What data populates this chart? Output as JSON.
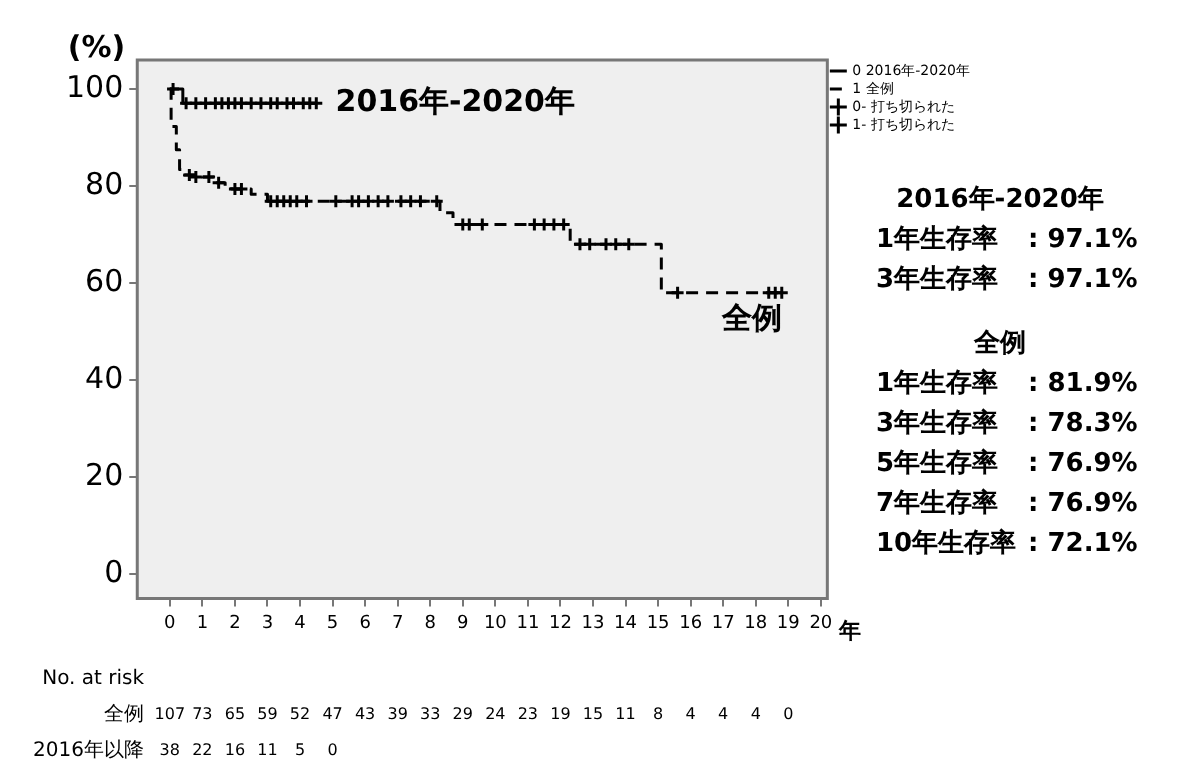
{
  "chart_data": {
    "type": "step",
    "ylabel": "(%)",
    "xlabel": "年",
    "xlim": [
      -1,
      20.2
    ],
    "xticks": [
      0,
      1,
      2,
      3,
      4,
      5,
      6,
      7,
      8,
      9,
      10,
      11,
      12,
      13,
      14,
      15,
      16,
      17,
      18,
      19,
      20
    ],
    "ylim": [
      -5,
      106
    ],
    "yticks": [
      0,
      20,
      40,
      60,
      80,
      100
    ],
    "grid": false,
    "legend": "top right",
    "series": [
      {
        "name": "0 2016年-2020年",
        "color": "#000000",
        "line_style": "solid",
        "marker": "none",
        "x": [
          0,
          0.4,
          4.5
        ],
        "values": [
          100,
          97.1,
          97.1
        ]
      },
      {
        "name": "1 全例",
        "color": "#000000",
        "line_style": "dashed",
        "marker": "none",
        "x": [
          0,
          0.04,
          0.2,
          0.3,
          0.45,
          1.0,
          1.35,
          1.7,
          1.9,
          2.5,
          3.0,
          8.3,
          8.7,
          12.3,
          15.1,
          18.8
        ],
        "values": [
          100,
          92.3,
          87.5,
          83.4,
          82.3,
          81.9,
          80.7,
          80.0,
          79.4,
          78.3,
          76.9,
          74.5,
          72.1,
          68.0,
          58.0,
          58.0
        ]
      },
      {
        "name": "0- 打ち切られた",
        "type": "scatter",
        "color": "#000000",
        "marker": "cross",
        "x": [
          0.1,
          0.5,
          0.8,
          1.1,
          1.4,
          1.6,
          1.8,
          2.0,
          2.2,
          2.5,
          2.8,
          3.1,
          3.3,
          3.6,
          3.8,
          4.1,
          4.3,
          4.5
        ],
        "values": [
          100,
          97.1,
          97.1,
          97.1,
          97.1,
          97.1,
          97.1,
          97.1,
          97.1,
          97.1,
          97.1,
          97.1,
          97.1,
          97.1,
          97.1,
          97.1,
          97.1,
          97.1
        ]
      },
      {
        "name": "1- 打ち切られた",
        "type": "scatter",
        "color": "#000000",
        "marker": "cross",
        "x": [
          0.6,
          0.8,
          1.2,
          1.5,
          2.0,
          2.2,
          3.1,
          3.3,
          3.5,
          3.7,
          3.9,
          4.2,
          5.1,
          5.6,
          5.8,
          6.1,
          6.4,
          6.7,
          7.1,
          7.4,
          7.7,
          8.2,
          9.0,
          9.2,
          9.6,
          11.2,
          11.5,
          11.8,
          12.1,
          12.6,
          12.9,
          13.4,
          13.7,
          14.1,
          15.6,
          18.4,
          18.6,
          18.8
        ],
        "values": [
          82.3,
          81.9,
          81.9,
          80.7,
          79.4,
          79.4,
          76.9,
          76.9,
          76.9,
          76.9,
          76.9,
          76.9,
          76.9,
          76.9,
          76.9,
          76.9,
          76.9,
          76.9,
          76.9,
          76.9,
          76.9,
          76.9,
          72.1,
          72.1,
          72.1,
          72.1,
          72.1,
          72.1,
          72.1,
          68.0,
          68.0,
          68.0,
          68.0,
          68.0,
          58.0,
          58.0,
          58.0,
          58.0
        ]
      }
    ],
    "annotations": [
      {
        "text": "2016年-2020年",
        "x": 4.6,
        "y": 97.1
      },
      {
        "text": "全例",
        "x": 18.8,
        "y": 58.0
      },
      "2016年-2020年",
      "1年生存率 : 97.1%",
      "3年生存率 : 97.1%",
      "全例",
      "1年生存率 : 81.9%",
      "3年生存率 : 78.3%",
      "5年生存率 : 76.9%",
      "7年生存率 : 76.9%",
      "10年生存率 : 72.1%",
      "No. at risk",
      "全例 107 73 65 59 52 47 43 39 33 29 24 23 19 15 11 8 4 4 4 0",
      "2016年以降 38 22 16 11 5 0"
    ]
  }
}
